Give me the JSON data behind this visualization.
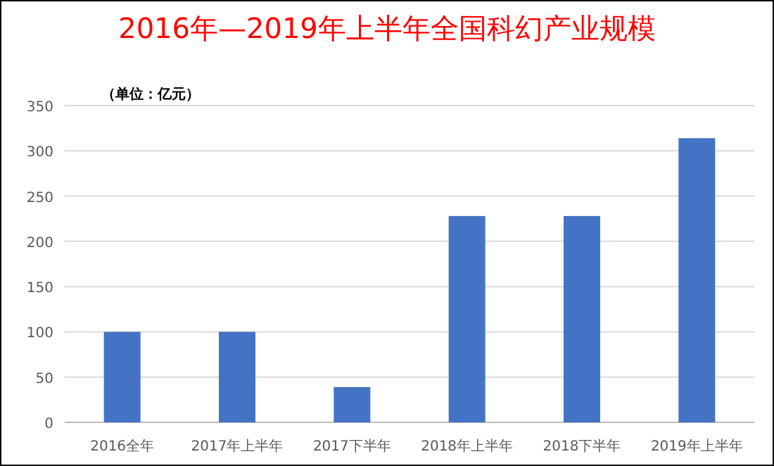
{
  "chart_data": {
    "type": "bar",
    "title": "2016年—2019年上半年全国科幻产业规模",
    "annotations": [
      "（单位：亿元）"
    ],
    "categories": [
      "2016全年",
      "2017年上半年",
      "2017下半年",
      "2018年上半年",
      "2018下半年",
      "2019年上半年"
    ],
    "values": [
      100,
      100,
      39,
      228,
      228,
      314
    ],
    "color": "#4472c4",
    "ylim": [
      0,
      350
    ],
    "yticks": [
      0,
      50,
      100,
      150,
      200,
      250,
      300,
      350
    ],
    "grid": "y"
  }
}
